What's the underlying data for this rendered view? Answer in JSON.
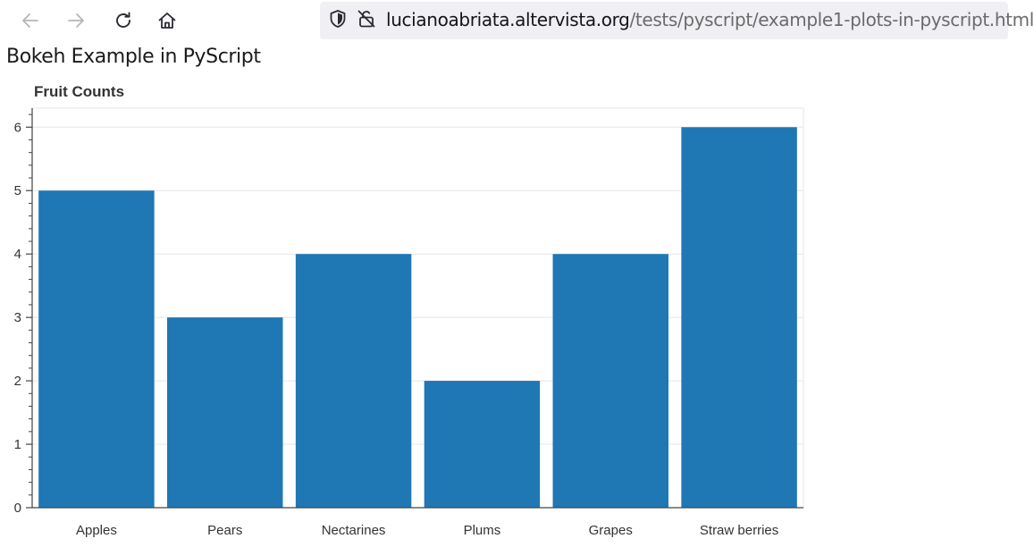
{
  "browser": {
    "url_domain": "lucianoabriata.altervista.org",
    "url_path": "/tests/pyscript/example1-plots-in-pyscript.html",
    "nav_icons": [
      "back-arrow-icon",
      "forward-arrow-icon",
      "reload-icon",
      "home-icon"
    ],
    "url_icons": [
      "shield-icon",
      "insecure-lock-icon"
    ]
  },
  "page": {
    "heading": "Bokeh Example in PyScript"
  },
  "chart_data": {
    "type": "bar",
    "title": "Fruit Counts",
    "xlabel": "",
    "ylabel": "",
    "categories": [
      "Apples",
      "Pears",
      "Nectarines",
      "Plums",
      "Grapes",
      "Straw berries"
    ],
    "values": [
      5,
      3,
      4,
      2,
      4,
      6
    ],
    "ylim": [
      0,
      6.3
    ],
    "yticks": [
      0,
      1,
      2,
      3,
      4,
      5,
      6
    ],
    "grid": "horizontal",
    "bar_color": "#1f77b4",
    "grid_color": "#e5e5e5",
    "axis_color": "#444444"
  }
}
